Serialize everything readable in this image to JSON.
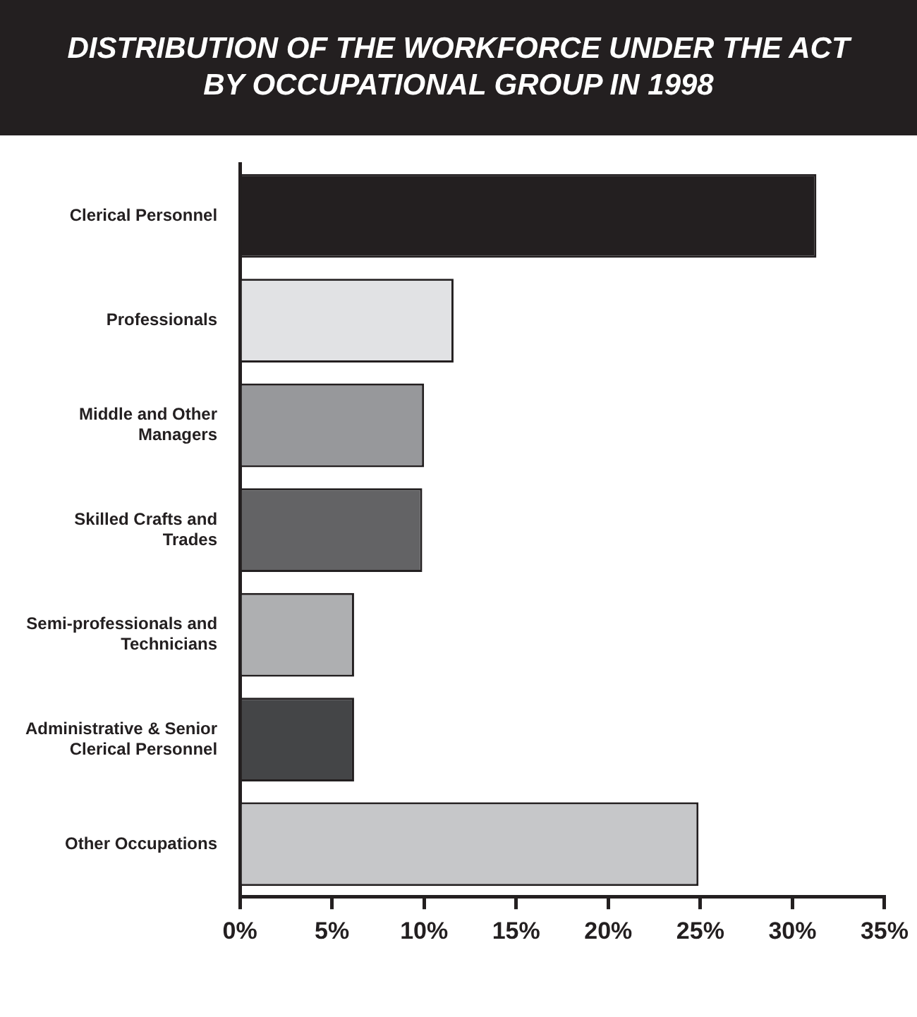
{
  "chart_data": {
    "type": "bar",
    "orientation": "horizontal",
    "title": "DISTRIBUTION OF THE WORKFORCE UNDER THE ACT BY OCCUPATIONAL GROUP IN 1998",
    "categories": [
      "Clerical Personnel",
      "Professionals",
      "Middle and Other Managers",
      "Skilled Crafts and Trades",
      "Semi-professionals and Technicians",
      "Administrative & Senior Clerical Personnel",
      "Other Occupations"
    ],
    "values": [
      31.3,
      11.6,
      10.0,
      9.9,
      6.2,
      6.2,
      24.9
    ],
    "colors": [
      "#231f20",
      "#e1e2e4",
      "#97989b",
      "#636365",
      "#aeafb1",
      "#444547",
      "#c6c7c9"
    ],
    "xlim": [
      0,
      35
    ],
    "xticks": [
      {
        "value": 0,
        "label": "0%"
      },
      {
        "value": 5,
        "label": "5%"
      },
      {
        "value": 10,
        "label": "10%"
      },
      {
        "value": 15,
        "label": "15%"
      },
      {
        "value": 20,
        "label": "20%"
      },
      {
        "value": 25,
        "label": "25%"
      },
      {
        "value": 30,
        "label": "30%"
      },
      {
        "value": 35,
        "label": "35%"
      }
    ],
    "grid": false,
    "legend": false
  }
}
